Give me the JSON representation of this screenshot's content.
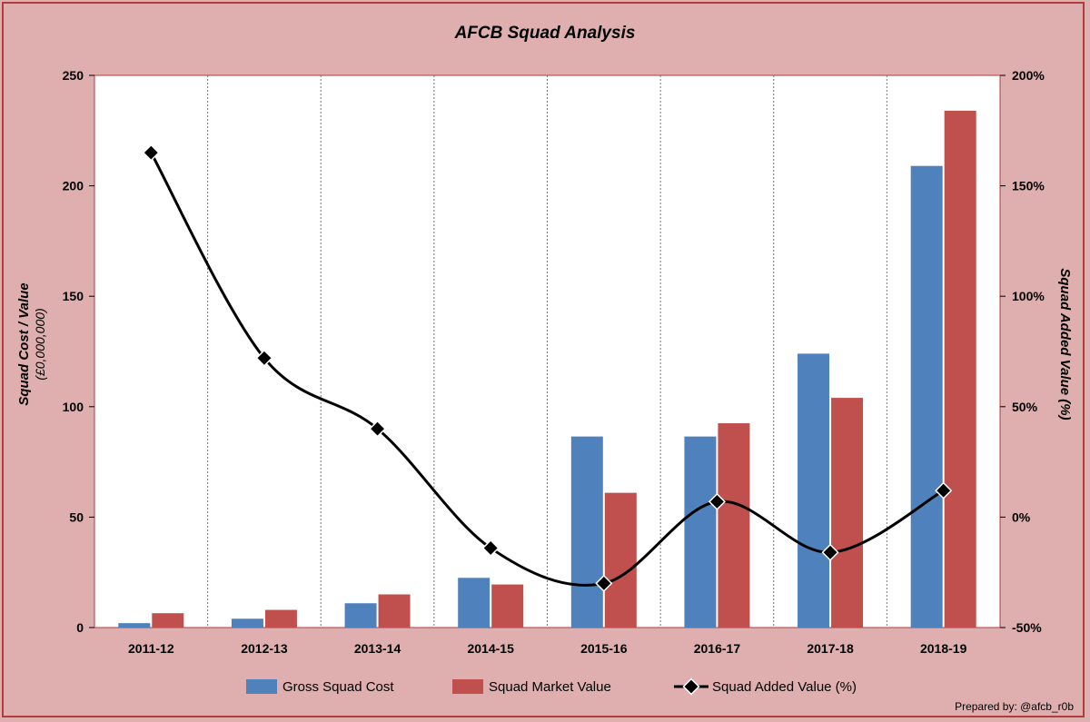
{
  "chart_data": {
    "type": "bar",
    "title": "AFCB Squad Analysis",
    "categories": [
      "2011-12",
      "2012-13",
      "2013-14",
      "2014-15",
      "2015-16",
      "2016-17",
      "2017-18",
      "2018-19"
    ],
    "series": [
      {
        "name": "Gross Squad Cost",
        "type": "bar",
        "axis": "left",
        "color": "#4f81bd",
        "values": [
          2,
          4,
          11,
          22.5,
          86.5,
          86.5,
          124,
          209
        ]
      },
      {
        "name": "Squad Market Value",
        "type": "bar",
        "axis": "left",
        "color": "#c0504d",
        "values": [
          6.5,
          8,
          15,
          19.5,
          61,
          92.5,
          104,
          234
        ]
      },
      {
        "name": "Squad Added Value (%)",
        "type": "line",
        "axis": "right",
        "color": "#000000",
        "values": [
          165,
          72,
          40,
          -14,
          -30,
          7,
          -16,
          12
        ]
      }
    ],
    "ylabel": "Squad Cost / Value",
    "ylabel_sub": "(£0,000,000)",
    "y2label": "Squad Added Value (%)",
    "ylim": [
      0,
      250
    ],
    "yticks": [
      "0",
      "50",
      "100",
      "150",
      "200",
      "250"
    ],
    "y2lim": [
      -50,
      200
    ],
    "y2ticks": [
      "-50%",
      "0%",
      "50%",
      "100%",
      "150%",
      "200%"
    ],
    "y2_negative_tick_color": "#ff0000",
    "grid": "vertical dotted",
    "legend_position": "bottom",
    "credit": "Prepared by: @afcb_r0b"
  }
}
